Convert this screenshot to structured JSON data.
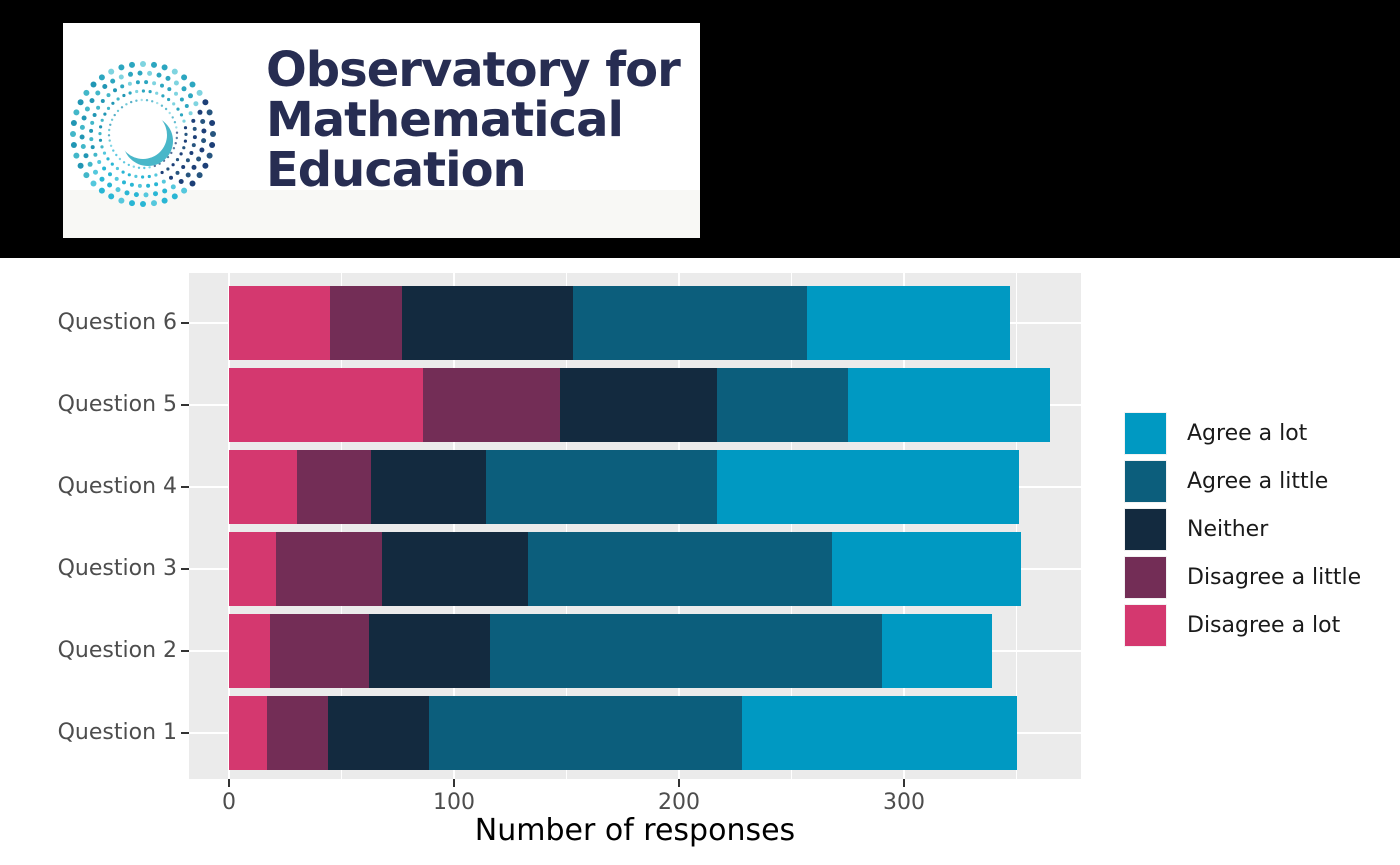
{
  "header": {
    "logo_lines": [
      "Observatory for",
      "Mathematical",
      "Education"
    ],
    "logo_text_color": "#272d52",
    "logo_bg": "#ffffff",
    "spiral_palette": [
      "#1d3f77",
      "#27557f",
      "#2e7fae",
      "#2196b4",
      "#29b6d4",
      "#55c8dd",
      "#7fd4e0",
      "#42b7c9",
      "#2ca6c0",
      "#9adbe3"
    ],
    "spiral_crescent_color": "#49b7c9"
  },
  "chart_data": {
    "type": "bar",
    "orientation": "horizontal",
    "stacked": true,
    "title": "",
    "xlabel": "Number of responses",
    "ylabel": "",
    "categories": [
      "Question 1",
      "Question 2",
      "Question 3",
      "Question 4",
      "Question 5",
      "Question 6"
    ],
    "series": [
      {
        "name": "Disagree a lot",
        "color": "#d4386f",
        "values": [
          17,
          18,
          21,
          30,
          86,
          45
        ]
      },
      {
        "name": "Disagree a little",
        "color": "#732d56",
        "values": [
          27,
          44,
          47,
          33,
          61,
          32
        ]
      },
      {
        "name": "Neither",
        "color": "#132a3f",
        "values": [
          45,
          54,
          65,
          51,
          70,
          76
        ]
      },
      {
        "name": "Agree a little",
        "color": "#0c5e7c",
        "values": [
          139,
          174,
          135,
          103,
          58,
          104
        ]
      },
      {
        "name": "Agree a lot",
        "color": "#0099c2",
        "values": [
          122,
          49,
          84,
          134,
          90,
          90
        ]
      }
    ],
    "xticks": [
      0,
      100,
      200,
      300
    ],
    "xticks_minor": [
      50,
      150,
      250,
      350
    ],
    "xlim": [
      -18,
      378
    ],
    "grid": true,
    "legend_position": "right",
    "legend_order": "reversed (Agree a lot on top)",
    "panel_bg": "#ebebeb",
    "grid_color": "#ffffff",
    "axis_text_color": "#4d4d4d",
    "tick_mark_color": "#333333",
    "axis_title_color": "#000000",
    "legend_text_color": "#1a1a1a",
    "legend_key_bg": "#f2f2f2"
  }
}
